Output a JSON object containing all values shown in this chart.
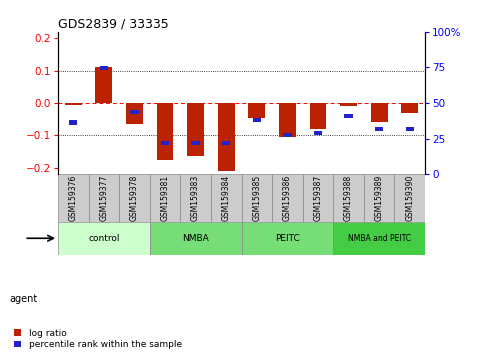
{
  "title": "GDS2839 / 33335",
  "samples": [
    "GSM159376",
    "GSM159377",
    "GSM159378",
    "GSM159381",
    "GSM159383",
    "GSM159384",
    "GSM159385",
    "GSM159386",
    "GSM159387",
    "GSM159388",
    "GSM159389",
    "GSM159390"
  ],
  "log_ratio": [
    -0.005,
    0.11,
    -0.065,
    -0.175,
    -0.165,
    -0.21,
    -0.045,
    -0.105,
    -0.08,
    -0.01,
    -0.06,
    -0.03
  ],
  "percentile_rank": [
    35,
    77,
    43,
    19,
    19,
    19,
    37,
    25,
    27,
    40,
    30,
    30
  ],
  "groups": [
    {
      "label": "control",
      "start": 0,
      "end": 3,
      "color": "#ccffcc"
    },
    {
      "label": "NMBA",
      "start": 3,
      "end": 6,
      "color": "#77dd77"
    },
    {
      "label": "PEITC",
      "start": 6,
      "end": 9,
      "color": "#77dd77"
    },
    {
      "label": "NMBA and PEITC",
      "start": 9,
      "end": 12,
      "color": "#44cc44"
    }
  ],
  "ylim": [
    -0.22,
    0.22
  ],
  "yticks_left": [
    -0.2,
    -0.1,
    0,
    0.1,
    0.2
  ],
  "yticks_right": [
    0,
    25,
    50,
    75,
    100
  ],
  "bar_width": 0.55,
  "red_color": "#bb2200",
  "blue_color": "#2222cc",
  "sample_box_color": "#cccccc",
  "agent_label": "agent",
  "legend_log": "log ratio",
  "legend_pct": "percentile rank within the sample",
  "background_color": "#ffffff"
}
